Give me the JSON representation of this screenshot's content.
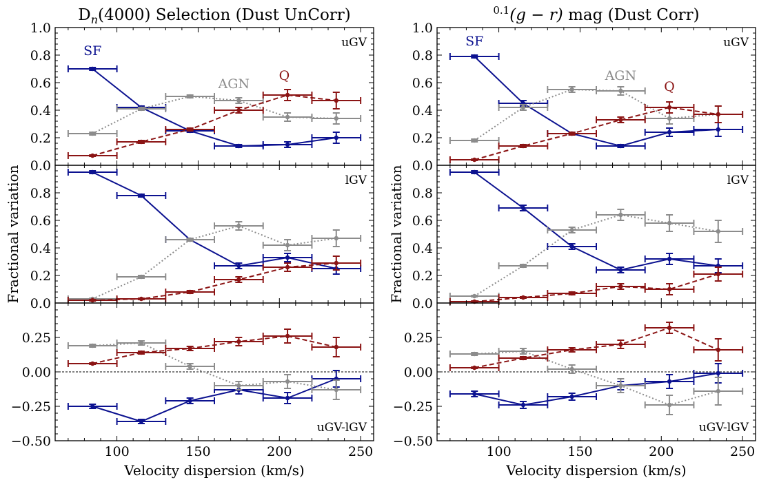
{
  "colors": {
    "SF": "#0c1290",
    "AGN": "#8c8c8c",
    "Q": "#8b1414"
  },
  "columns": [
    {
      "title_html": "D<tspan font-style=\"italic\" font-size=\"16\" dy=\"5\">n</tspan><tspan dy=\"-5\">(4000) Selection (Dust UnCorr)</tspan>",
      "title_text": "Dn(4000) Selection (Dust UnCorr)"
    },
    {
      "title_html": "<tspan font-size=\"15\" dy=\"-9\">0.1</tspan><tspan dy=\"9\" font-style=\"italic\">(g − r)</tspan><tspan> mag (Dust Corr)</tspan>",
      "title_text": "0.1(g − r) mag (Dust Corr)"
    }
  ],
  "xlabel": "Velocity dispersion (km/s)",
  "ylabel": "Fractional variation",
  "chart_data": [
    {
      "type": "line",
      "panel": "uGV",
      "column": 0,
      "xlim": [
        62,
        258
      ],
      "ylim": [
        0,
        1.0
      ],
      "xticks": [
        100,
        150,
        200,
        250
      ],
      "yticks": [
        0.0,
        0.2,
        0.4,
        0.6,
        0.8,
        1.0
      ],
      "label": "uGV",
      "series_labels": [
        "SF",
        "AGN",
        "Q"
      ],
      "x": [
        85,
        115,
        145,
        175,
        205,
        235
      ],
      "xerr": 15,
      "series": [
        {
          "name": "SF",
          "values": [
            0.7,
            0.42,
            0.25,
            0.14,
            0.15,
            0.2
          ],
          "err": [
            0.01,
            0.01,
            0.01,
            0.01,
            0.02,
            0.04
          ],
          "style": "solid"
        },
        {
          "name": "AGN",
          "values": [
            0.23,
            0.41,
            0.5,
            0.47,
            0.35,
            0.34
          ],
          "err": [
            0.01,
            0.01,
            0.01,
            0.02,
            0.03,
            0.04
          ],
          "style": "dotted"
        },
        {
          "name": "Q",
          "values": [
            0.07,
            0.17,
            0.26,
            0.4,
            0.51,
            0.47
          ],
          "err": [
            0.005,
            0.01,
            0.01,
            0.02,
            0.04,
            0.06
          ],
          "style": "dashed"
        }
      ]
    },
    {
      "type": "line",
      "panel": "lGV",
      "column": 0,
      "xlim": [
        62,
        258
      ],
      "ylim": [
        0,
        1.0
      ],
      "xticks": [
        100,
        150,
        200,
        250
      ],
      "yticks": [
        0.0,
        0.2,
        0.4,
        0.6,
        0.8
      ],
      "label": "lGV",
      "x": [
        85,
        115,
        145,
        175,
        205,
        235
      ],
      "xerr": 15,
      "series": [
        {
          "name": "SF",
          "values": [
            0.95,
            0.78,
            0.46,
            0.27,
            0.33,
            0.25
          ],
          "err": [
            0.01,
            0.01,
            0.01,
            0.02,
            0.03,
            0.04
          ],
          "style": "solid"
        },
        {
          "name": "AGN",
          "values": [
            0.03,
            0.19,
            0.46,
            0.56,
            0.42,
            0.47
          ],
          "err": [
            0.005,
            0.01,
            0.01,
            0.03,
            0.04,
            0.06
          ],
          "style": "dotted"
        },
        {
          "name": "Q",
          "values": [
            0.02,
            0.03,
            0.08,
            0.17,
            0.26,
            0.29
          ],
          "err": [
            0.005,
            0.005,
            0.01,
            0.02,
            0.03,
            0.05
          ],
          "style": "dashed"
        }
      ]
    },
    {
      "type": "line",
      "panel": "uGV-lGV",
      "column": 0,
      "xlim": [
        62,
        258
      ],
      "ylim": [
        -0.5,
        0.5
      ],
      "xticks": [
        100,
        150,
        200,
        250
      ],
      "yticks": [
        -0.5,
        -0.25,
        0.0,
        0.25
      ],
      "label": "uGV-lGV",
      "zero_line": true,
      "x": [
        85,
        115,
        145,
        175,
        205,
        235
      ],
      "xerr": 15,
      "series": [
        {
          "name": "SF",
          "values": [
            -0.25,
            -0.36,
            -0.21,
            -0.13,
            -0.19,
            -0.05
          ],
          "err": [
            0.015,
            0.015,
            0.02,
            0.03,
            0.04,
            0.06
          ],
          "style": "solid"
        },
        {
          "name": "AGN",
          "values": [
            0.19,
            0.21,
            0.04,
            -0.1,
            -0.07,
            -0.13
          ],
          "err": [
            0.01,
            0.015,
            0.02,
            0.03,
            0.05,
            0.07
          ],
          "style": "dotted"
        },
        {
          "name": "Q",
          "values": [
            0.06,
            0.14,
            0.17,
            0.22,
            0.26,
            0.18
          ],
          "err": [
            0.005,
            0.01,
            0.015,
            0.03,
            0.05,
            0.07
          ],
          "style": "dashed"
        }
      ]
    },
    {
      "type": "line",
      "panel": "uGV",
      "column": 1,
      "xlim": [
        62,
        258
      ],
      "ylim": [
        0,
        1.0
      ],
      "xticks": [
        100,
        150,
        200,
        250
      ],
      "yticks": [
        0.0,
        0.2,
        0.4,
        0.6,
        0.8,
        1.0
      ],
      "label": "uGV",
      "series_labels": [
        "SF",
        "AGN",
        "Q"
      ],
      "x": [
        85,
        115,
        145,
        175,
        205,
        235
      ],
      "xerr": 15,
      "series": [
        {
          "name": "SF",
          "values": [
            0.79,
            0.45,
            0.23,
            0.14,
            0.24,
            0.26
          ],
          "err": [
            0.01,
            0.02,
            0.01,
            0.01,
            0.03,
            0.05
          ],
          "style": "solid"
        },
        {
          "name": "AGN",
          "values": [
            0.18,
            0.42,
            0.55,
            0.54,
            0.34,
            0.37
          ],
          "err": [
            0.01,
            0.02,
            0.02,
            0.03,
            0.04,
            0.06
          ],
          "style": "dotted"
        },
        {
          "name": "Q",
          "values": [
            0.04,
            0.14,
            0.23,
            0.33,
            0.42,
            0.37
          ],
          "err": [
            0.005,
            0.01,
            0.01,
            0.02,
            0.04,
            0.06
          ],
          "style": "dashed"
        }
      ]
    },
    {
      "type": "line",
      "panel": "lGV",
      "column": 1,
      "xlim": [
        62,
        258
      ],
      "ylim": [
        0,
        1.0
      ],
      "xticks": [
        100,
        150,
        200,
        250
      ],
      "yticks": [
        0.0,
        0.2,
        0.4,
        0.6,
        0.8
      ],
      "label": "lGV",
      "x": [
        85,
        115,
        145,
        175,
        205,
        235
      ],
      "xerr": 15,
      "series": [
        {
          "name": "SF",
          "values": [
            0.95,
            0.69,
            0.41,
            0.24,
            0.32,
            0.27
          ],
          "err": [
            0.01,
            0.02,
            0.02,
            0.02,
            0.04,
            0.05
          ],
          "style": "solid"
        },
        {
          "name": "AGN",
          "values": [
            0.05,
            0.27,
            0.53,
            0.64,
            0.58,
            0.52
          ],
          "err": [
            0.005,
            0.01,
            0.02,
            0.04,
            0.06,
            0.08
          ],
          "style": "dotted"
        },
        {
          "name": "Q",
          "values": [
            0.01,
            0.04,
            0.07,
            0.12,
            0.1,
            0.21
          ],
          "err": [
            0.005,
            0.005,
            0.01,
            0.02,
            0.04,
            0.05
          ],
          "style": "dashed"
        }
      ]
    },
    {
      "type": "line",
      "panel": "uGV-lGV",
      "column": 1,
      "xlim": [
        62,
        258
      ],
      "ylim": [
        -0.5,
        0.5
      ],
      "xticks": [
        100,
        150,
        200,
        250
      ],
      "yticks": [
        -0.5,
        -0.25,
        0.0,
        0.25
      ],
      "label": "uGV-lGV",
      "zero_line": true,
      "x": [
        85,
        115,
        145,
        175,
        205,
        235
      ],
      "xerr": 15,
      "series": [
        {
          "name": "SF",
          "values": [
            -0.16,
            -0.24,
            -0.18,
            -0.1,
            -0.07,
            -0.01
          ],
          "err": [
            0.02,
            0.025,
            0.025,
            0.03,
            0.05,
            0.07
          ],
          "style": "solid"
        },
        {
          "name": "AGN",
          "values": [
            0.13,
            0.15,
            0.02,
            -0.1,
            -0.24,
            -0.14
          ],
          "err": [
            0.01,
            0.02,
            0.03,
            0.05,
            0.07,
            0.1
          ],
          "style": "dotted"
        },
        {
          "name": "Q",
          "values": [
            0.03,
            0.1,
            0.16,
            0.2,
            0.32,
            0.16
          ],
          "err": [
            0.005,
            0.01,
            0.015,
            0.03,
            0.04,
            0.08
          ],
          "style": "dashed"
        }
      ]
    }
  ]
}
